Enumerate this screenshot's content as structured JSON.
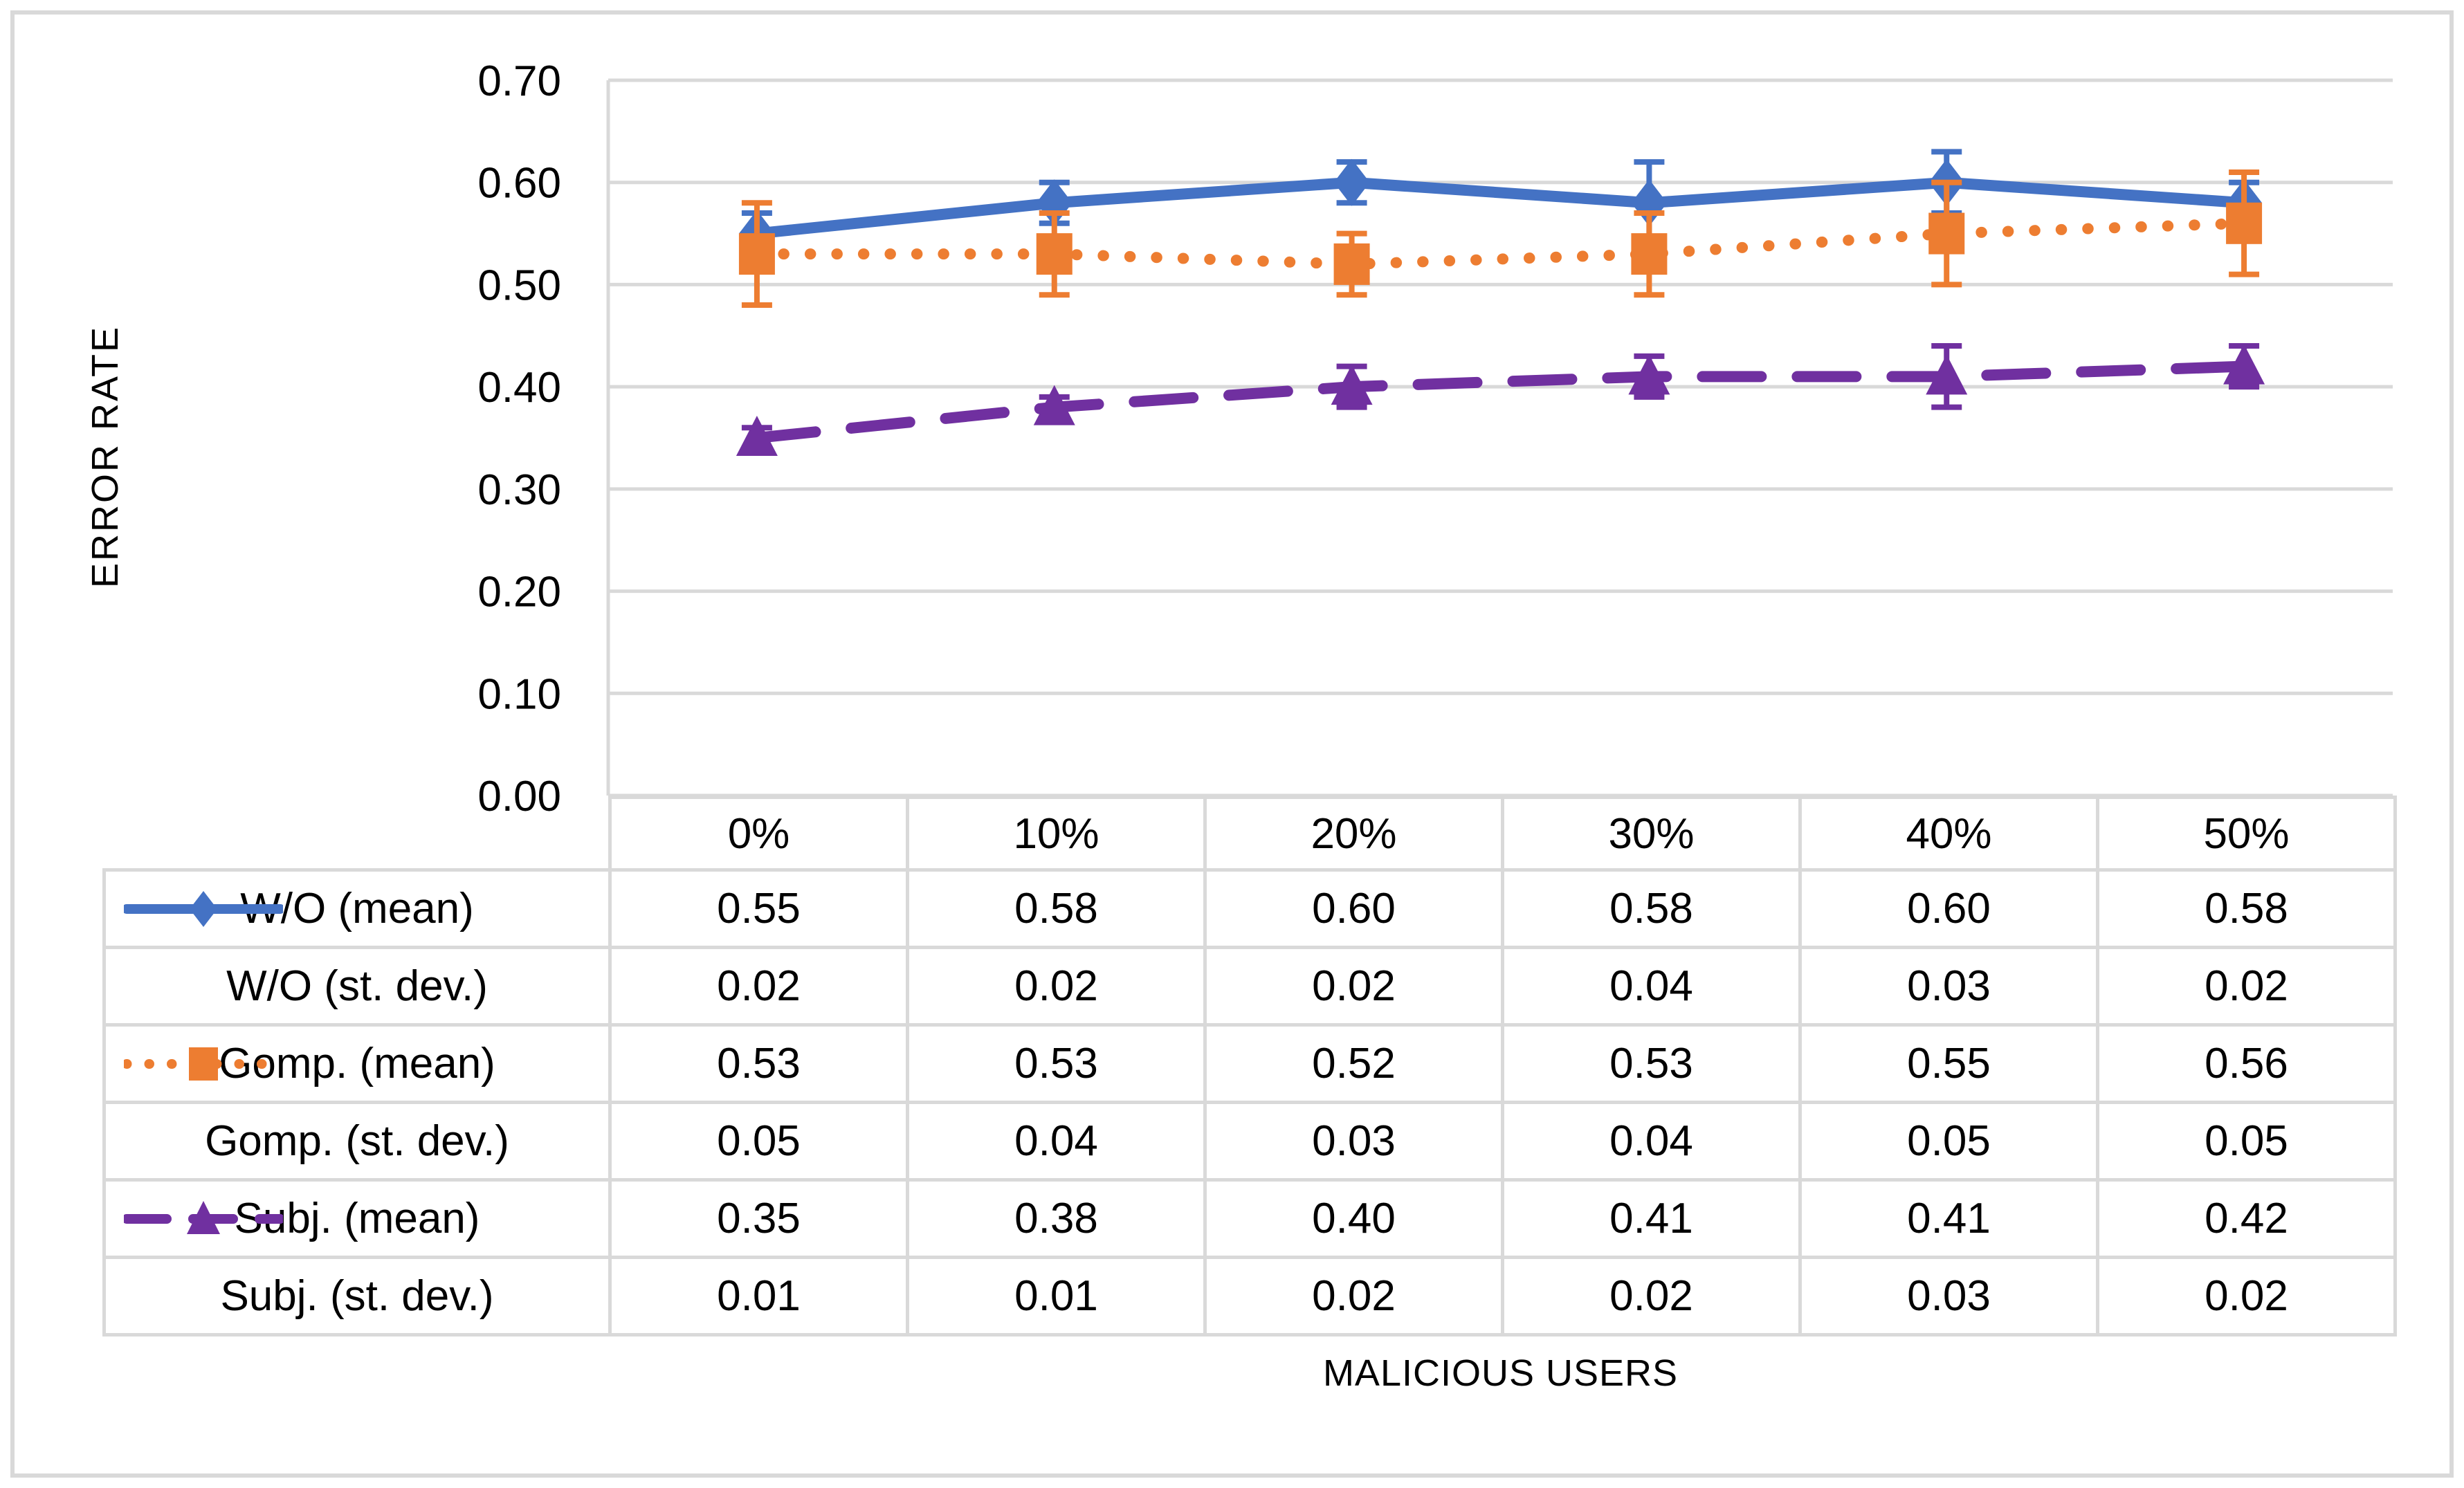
{
  "chart_data": {
    "type": "line",
    "title": "",
    "xlabel": "MALICIOUS USERS",
    "ylabel": "ERROR RATE",
    "categories": [
      "0%",
      "10%",
      "20%",
      "30%",
      "40%",
      "50%"
    ],
    "series": [
      {
        "name": "W/O (mean)",
        "values": [
          0.55,
          0.58,
          0.6,
          0.58,
          0.6,
          0.58
        ],
        "stdev_name": "W/O (st. dev.)",
        "stdev": [
          0.02,
          0.02,
          0.02,
          0.04,
          0.03,
          0.02
        ],
        "color": "#4472C4",
        "marker": "diamond",
        "line_style": "solid"
      },
      {
        "name": "Gomp. (mean)",
        "values": [
          0.53,
          0.53,
          0.52,
          0.53,
          0.55,
          0.56
        ],
        "stdev_name": "Gomp. (st. dev.)",
        "stdev": [
          0.05,
          0.04,
          0.03,
          0.04,
          0.05,
          0.05
        ],
        "color": "#ED7D31",
        "marker": "square",
        "line_style": "dotted"
      },
      {
        "name": "Subj. (mean)",
        "values": [
          0.35,
          0.38,
          0.4,
          0.41,
          0.41,
          0.42
        ],
        "stdev_name": "Subj. (st. dev.)",
        "stdev": [
          0.01,
          0.01,
          0.02,
          0.02,
          0.03,
          0.02
        ],
        "color": "#7030A0",
        "marker": "triangle",
        "line_style": "dashed"
      }
    ],
    "ylim": [
      0.0,
      0.7
    ],
    "ytick_step": 0.1,
    "ytick_labels": [
      "0.00",
      "0.10",
      "0.20",
      "0.30",
      "0.40",
      "0.50",
      "0.60",
      "0.70"
    ],
    "grid": true,
    "error_bars": true,
    "legend_position": "table-row-labels",
    "value_decimals": 2,
    "style": {
      "grid_color": "#D9D9D9",
      "figure_border_color": "#D9D9D9",
      "text_color": "#000000",
      "background": "#FFFFFF"
    }
  }
}
